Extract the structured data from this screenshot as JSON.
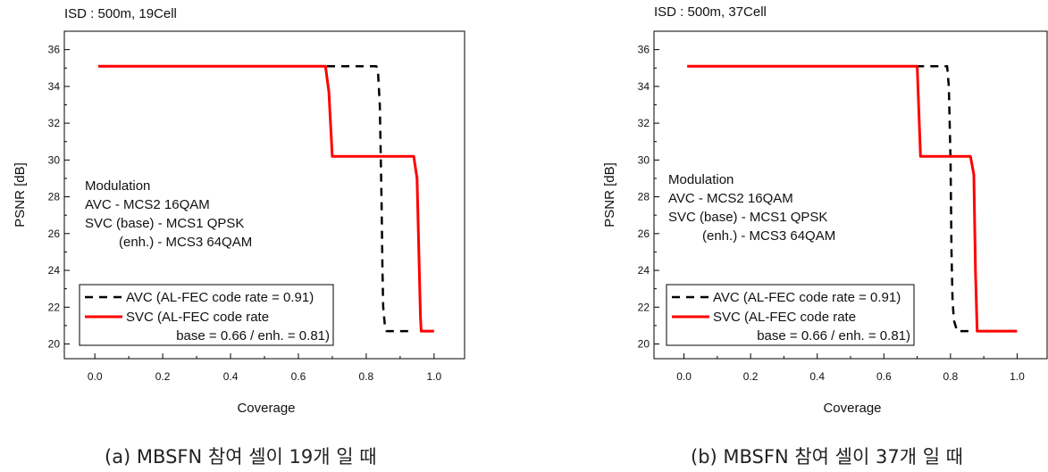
{
  "chart_data": [
    {
      "type": "line",
      "title": "ISD : 500m, 19Cell",
      "xlabel": "Coverage",
      "ylabel": "PSNR [dB]",
      "xlim": [
        -0.09,
        1.09
      ],
      "ylim": [
        19.2,
        37.0
      ],
      "xticks": [
        0.0,
        0.2,
        0.4,
        0.6,
        0.8,
        1.0
      ],
      "xtick_labels": [
        "0.0",
        "0.2",
        "0.4",
        "0.6",
        "0.8",
        "1.0"
      ],
      "yticks": [
        20,
        22,
        24,
        26,
        28,
        30,
        32,
        34,
        36
      ],
      "ytick_labels": [
        "20",
        "22",
        "24",
        "26",
        "28",
        "30",
        "32",
        "34",
        "36"
      ],
      "grid": false,
      "annotation_lines": [
        "Modulation",
        "AVC - MCS2 16QAM",
        "SVC (base) - MCS1 QPSK",
        "(enh.) - MCS3 64QAM"
      ],
      "legend_position": "bottom-left",
      "legend_lines": [
        [
          "AVC (AL-FEC code rate = 0.91)"
        ],
        [
          "SVC (AL-FEC code rate",
          "base = 0.66 / enh. = 0.81)"
        ]
      ],
      "series": [
        {
          "name": "AVC (AL-FEC code rate = 0.91)",
          "color": "#000000",
          "dash": "dashed",
          "x": [
            0.01,
            0.83,
            0.835,
            0.84,
            0.845,
            0.848,
            0.85,
            0.855,
            0.86,
            0.94
          ],
          "y": [
            35.1,
            35.1,
            34.7,
            33.0,
            28.0,
            24.0,
            22.0,
            21.0,
            20.7,
            20.7
          ]
        },
        {
          "name": "SVC (AL-FEC code rate base = 0.66 / enh. = 0.81)",
          "color": "#ff0000",
          "dash": "solid",
          "x": [
            0.01,
            0.68,
            0.69,
            0.7,
            0.94,
            0.95,
            0.96,
            0.962,
            1.0
          ],
          "y": [
            35.1,
            35.1,
            33.7,
            30.2,
            30.2,
            29.0,
            21.5,
            20.7,
            20.7
          ]
        }
      ]
    },
    {
      "type": "line",
      "title": "ISD : 500m, 37Cell",
      "xlabel": "Coverage",
      "ylabel": "PSNR [dB]",
      "xlim": [
        -0.09,
        1.09
      ],
      "ylim": [
        19.2,
        37.0
      ],
      "xticks": [
        0.0,
        0.2,
        0.4,
        0.6,
        0.8,
        1.0
      ],
      "xtick_labels": [
        "0.0",
        "0.2",
        "0.4",
        "0.6",
        "0.8",
        "1.0"
      ],
      "yticks": [
        20,
        22,
        24,
        26,
        28,
        30,
        32,
        34,
        36
      ],
      "ytick_labels": [
        "20",
        "22",
        "24",
        "26",
        "28",
        "30",
        "32",
        "34",
        "36"
      ],
      "grid": false,
      "annotation_lines": [
        "Modulation",
        "AVC - MCS2 16QAM",
        "SVC (base) - MCS1 QPSK",
        "(enh.) - MCS3 64QAM"
      ],
      "legend_position": "bottom-left",
      "legend_lines": [
        [
          "AVC (AL-FEC code rate = 0.91)"
        ],
        [
          "SVC (AL-FEC code rate",
          "base = 0.66 / enh. = 0.81)"
        ]
      ],
      "series": [
        {
          "name": "AVC (AL-FEC code rate = 0.91)",
          "color": "#000000",
          "dash": "dashed",
          "x": [
            0.01,
            0.79,
            0.795,
            0.8,
            0.803,
            0.806,
            0.81,
            0.82,
            0.87
          ],
          "y": [
            35.1,
            35.1,
            34.0,
            30.0,
            25.0,
            22.5,
            21.3,
            20.7,
            20.7
          ]
        },
        {
          "name": "SVC (AL-FEC code rate base = 0.66 / enh. = 0.81)",
          "color": "#ff0000",
          "dash": "solid",
          "x": [
            0.01,
            0.7,
            0.71,
            0.86,
            0.87,
            0.875,
            0.88,
            1.0
          ],
          "y": [
            35.1,
            35.1,
            30.2,
            30.2,
            29.2,
            24.0,
            20.7,
            20.7
          ]
        }
      ]
    }
  ],
  "captions": [
    "(a) MBSFN 참여 셀이 19개 일 때",
    "(b) MBSFN 참여 셀이 37개 일 때"
  ]
}
